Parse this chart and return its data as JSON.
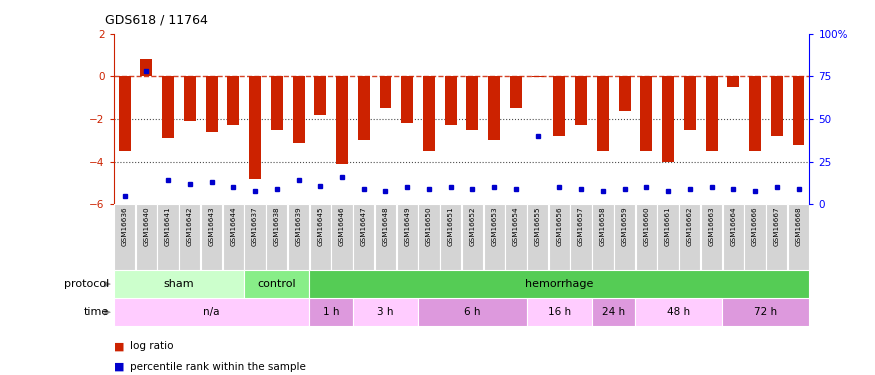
{
  "title": "GDS618 / 11764",
  "samples": [
    "GSM16636",
    "GSM16640",
    "GSM16641",
    "GSM16642",
    "GSM16643",
    "GSM16644",
    "GSM16637",
    "GSM16638",
    "GSM16639",
    "GSM16645",
    "GSM16646",
    "GSM16647",
    "GSM16648",
    "GSM16649",
    "GSM16650",
    "GSM16651",
    "GSM16652",
    "GSM16653",
    "GSM16654",
    "GSM16655",
    "GSM16656",
    "GSM16657",
    "GSM16658",
    "GSM16659",
    "GSM16660",
    "GSM16661",
    "GSM16662",
    "GSM16663",
    "GSM16664",
    "GSM16666",
    "GSM16667",
    "GSM16668"
  ],
  "log_ratio": [
    -3.5,
    0.8,
    -2.9,
    -2.1,
    -2.6,
    -2.3,
    -4.8,
    -2.5,
    -3.1,
    -1.8,
    -4.1,
    -3.0,
    -1.5,
    -2.2,
    -3.5,
    -2.3,
    -2.5,
    -3.0,
    -1.5,
    -0.05,
    -2.8,
    -2.3,
    -3.5,
    -1.6,
    -3.5,
    -4.0,
    -2.5,
    -3.5,
    -0.5,
    -3.5,
    -2.8,
    -3.2
  ],
  "percentile_rank": [
    5,
    78,
    14,
    12,
    13,
    10,
    8,
    9,
    14,
    11,
    16,
    9,
    8,
    10,
    9,
    10,
    9,
    10,
    9,
    40,
    10,
    9,
    8,
    9,
    10,
    8,
    9,
    10,
    9,
    8,
    10,
    9
  ],
  "ylim_left": [
    -6,
    2
  ],
  "yticks_left": [
    -6,
    -4,
    -2,
    0,
    2
  ],
  "yticks_right": [
    0,
    25,
    50,
    75,
    100
  ],
  "bar_color": "#cc2200",
  "dot_color": "#0000cc",
  "dotted_lines": [
    -2,
    -4
  ],
  "protocol_groups": [
    {
      "label": "sham",
      "start": 0,
      "end": 5,
      "color": "#ccffcc"
    },
    {
      "label": "control",
      "start": 6,
      "end": 8,
      "color": "#88ee88"
    },
    {
      "label": "hemorrhage",
      "start": 9,
      "end": 31,
      "color": "#55cc55"
    }
  ],
  "time_groups": [
    {
      "label": "n/a",
      "start": 0,
      "end": 8,
      "color": "#ffccff"
    },
    {
      "label": "1 h",
      "start": 9,
      "end": 10,
      "color": "#dd99dd"
    },
    {
      "label": "3 h",
      "start": 11,
      "end": 13,
      "color": "#ffccff"
    },
    {
      "label": "6 h",
      "start": 14,
      "end": 18,
      "color": "#dd99dd"
    },
    {
      "label": "16 h",
      "start": 19,
      "end": 21,
      "color": "#ffccff"
    },
    {
      "label": "24 h",
      "start": 22,
      "end": 23,
      "color": "#dd99dd"
    },
    {
      "label": "48 h",
      "start": 24,
      "end": 27,
      "color": "#ffccff"
    },
    {
      "label": "72 h",
      "start": 28,
      "end": 31,
      "color": "#dd99dd"
    }
  ]
}
